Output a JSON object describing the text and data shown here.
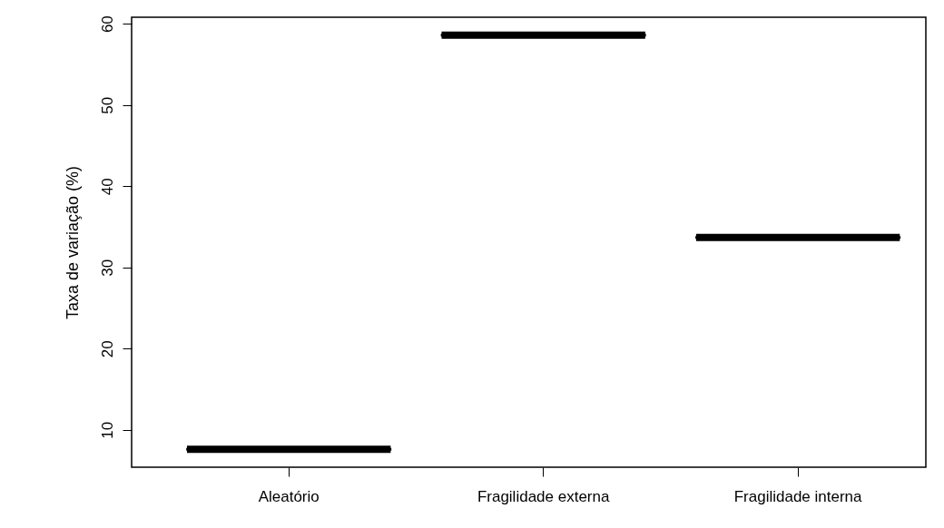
{
  "chart_data": {
    "type": "box",
    "ylabel": "Taxa de variação (%)",
    "categories": [
      "Aleatório",
      "Fragilidade externa",
      "Fragilidade interna"
    ],
    "boxes": [
      {
        "low": 7.6,
        "q1": 7.6,
        "median": 7.6,
        "q3": 7.6,
        "high": 7.6
      },
      {
        "low": 58.6,
        "q1": 58.6,
        "median": 58.6,
        "q3": 58.6,
        "high": 58.6
      },
      {
        "low": 33.7,
        "q1": 33.7,
        "median": 33.7,
        "q3": 33.7,
        "high": 33.7
      }
    ],
    "ylim": [
      5.4,
      60.8
    ],
    "yticks": [
      10,
      20,
      30,
      40,
      50,
      60
    ],
    "grid": false
  }
}
